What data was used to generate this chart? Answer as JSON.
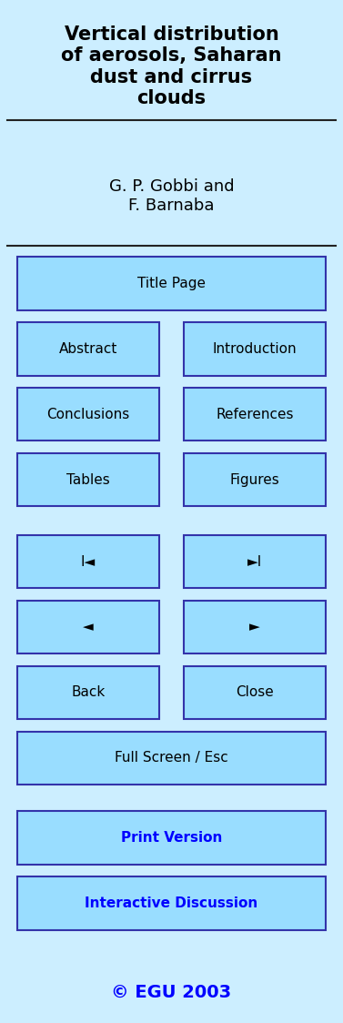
{
  "bg_color": "#cceeff",
  "title_text": "Vertical distribution\nof aerosols, Saharan\ndust and cirrus\nclouds",
  "author_text": "G. P. Gobbi and\nF. Barnaba",
  "title_fontsize": 15,
  "author_fontsize": 13,
  "button_color": "#99ddff",
  "button_edge_color": "#3333aa",
  "button_text_color": "#000000",
  "blue_text_color": "#0000ff",
  "button_fontsize": 11,
  "buttons_left": [
    "Abstract",
    "Conclusions",
    "Tables",
    "I◄",
    "◄",
    "Back"
  ],
  "buttons_right": [
    "Introduction",
    "References",
    "Figures",
    "►I",
    "►",
    "Close"
  ],
  "copyright": "© EGU 2003"
}
